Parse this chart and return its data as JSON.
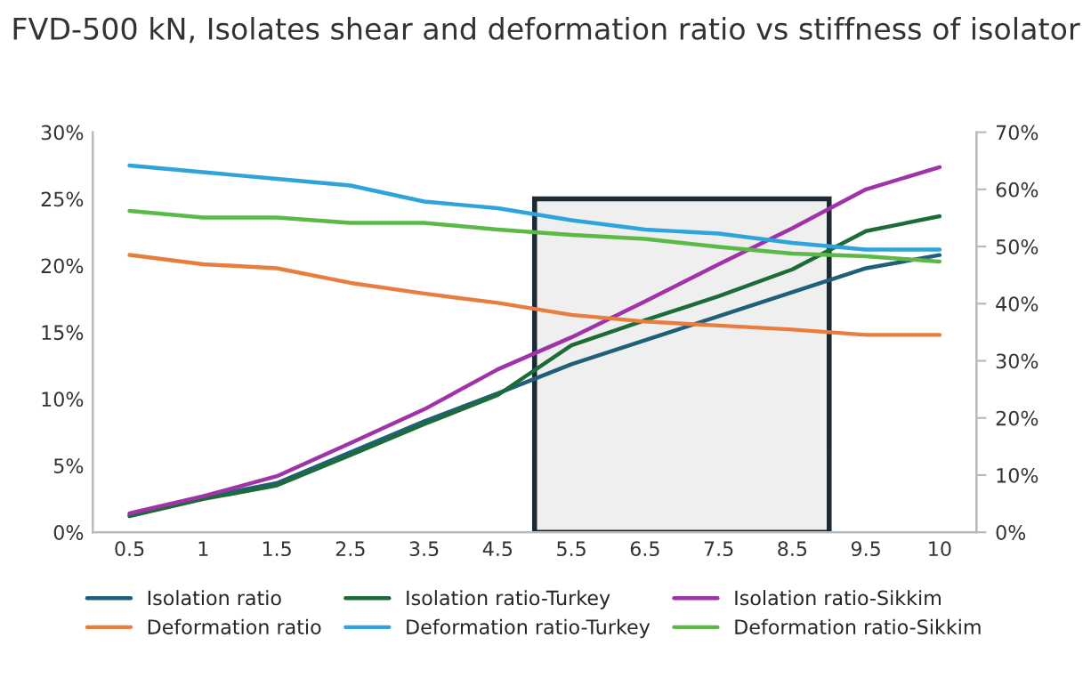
{
  "chart_data": {
    "type": "line",
    "title": "FVD-500 kN, Isolates shear and deformation ratio vs stiffness of isolator",
    "categories": [
      "0.5",
      "1",
      "1.5",
      "2.5",
      "3.5",
      "4.5",
      "5.5",
      "6.5",
      "7.5",
      "8.5",
      "9.5",
      "10"
    ],
    "series": [
      {
        "name": "Isolation ratio",
        "color": "#1f5f7a",
        "axis": "y2",
        "values": [
          3.0,
          6.1,
          8.6,
          14.0,
          19.4,
          24.3,
          29.4,
          33.6,
          37.8,
          42.0,
          46.2,
          48.5
        ]
      },
      {
        "name": "Isolation ratio-Turkey",
        "color": "#1e6b3a",
        "axis": "y2",
        "values": [
          2.8,
          5.8,
          8.2,
          13.5,
          18.9,
          24.0,
          32.7,
          37.1,
          41.3,
          46.0,
          52.7,
          55.3
        ]
      },
      {
        "name": "Isolation ratio-Sikkim",
        "color": "#a033a8",
        "axis": "y2",
        "values": [
          3.3,
          6.3,
          9.8,
          15.6,
          21.5,
          28.5,
          34.1,
          40.4,
          46.9,
          53.2,
          60.0,
          63.9
        ]
      },
      {
        "name": "Deformation ratio",
        "color": "#e87d3e",
        "values": [
          20.8,
          20.1,
          19.8,
          18.7,
          17.9,
          17.2,
          16.3,
          15.8,
          15.5,
          15.2,
          14.8,
          14.8
        ]
      },
      {
        "name": "Deformation ratio-Turkey",
        "color": "#2ea3dc",
        "values": [
          27.5,
          27.0,
          26.5,
          26.0,
          24.8,
          24.3,
          23.4,
          22.7,
          22.4,
          21.7,
          21.2,
          21.2
        ]
      },
      {
        "name": "Deformation ratio-Sikkim",
        "color": "#5ab947",
        "values": [
          24.1,
          23.6,
          23.6,
          23.2,
          23.2,
          22.7,
          22.3,
          22.0,
          21.4,
          20.9,
          20.7,
          20.3
        ]
      }
    ],
    "ylim": [
      0,
      30
    ],
    "yticks": [
      {
        "value": 0,
        "label": "0%"
      },
      {
        "value": 5,
        "label": "5%"
      },
      {
        "value": 10,
        "label": "10%"
      },
      {
        "value": 15,
        "label": "15%"
      },
      {
        "value": 20,
        "label": "20%"
      },
      {
        "value": 25,
        "label": "25%"
      },
      {
        "value": 30,
        "label": "30%"
      }
    ],
    "y2lim": [
      0,
      70
    ],
    "y2ticks": [
      {
        "value": 0,
        "label": "0%"
      },
      {
        "value": 10,
        "label": "10%"
      },
      {
        "value": 20,
        "label": "20%"
      },
      {
        "value": 30,
        "label": "30%"
      },
      {
        "value": 40,
        "label": "40%"
      },
      {
        "value": 50,
        "label": "50%"
      },
      {
        "value": 60,
        "label": "60%"
      },
      {
        "value": 70,
        "label": "70%"
      }
    ],
    "grid": false,
    "legend": "bottom",
    "line_style": "solid",
    "marker": "none"
  }
}
